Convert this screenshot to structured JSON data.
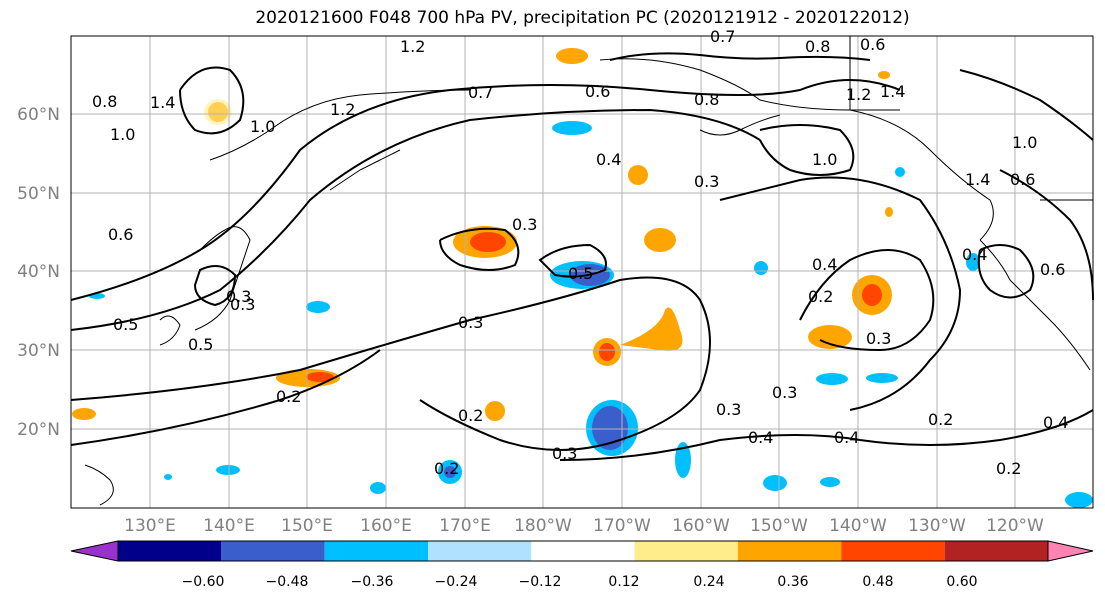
{
  "title": "2020121600 F048 700 hPa PV, precipitation PC (2020121912 - 2020122012)",
  "lat_labels": [
    "60°N",
    "50°N",
    "40°N",
    "30°N",
    "20°N"
  ],
  "lon_labels": [
    "130°E",
    "140°E",
    "150°E",
    "160°E",
    "170°E",
    "180°W",
    "170°W",
    "160°W",
    "150°W",
    "140°W",
    "130°W",
    "120°W"
  ],
  "colorbar": {
    "ticks": [
      "−0.60",
      "−0.48",
      "−0.36",
      "−0.24",
      "−0.12",
      "0.12",
      "0.24",
      "0.36",
      "0.48",
      "0.60"
    ],
    "colors": [
      "#9932cc",
      "#00008b",
      "#3a5fcd",
      "#00bfff",
      "#b0e2ff",
      "#ffffff",
      "#ffec8b",
      "#ffa500",
      "#ff4500",
      "#b22222",
      "#ff83b3"
    ]
  },
  "contour_labels": [
    "1.2",
    "0.7",
    "0.8",
    "0.6",
    "1.2",
    "1.4",
    "0.8",
    "1.4",
    "1.0",
    "0.7",
    "0.6",
    "0.8",
    "1.2",
    "1.0",
    "0.4",
    "0.3",
    "1.0",
    "1.0",
    "1.4",
    "0.6",
    "0.3",
    "0.5",
    "0.4",
    "0.4",
    "0.2",
    "0.3",
    "0.3",
    "0.5",
    "0.3",
    "0.2",
    "0.2",
    "0.3",
    "0.3",
    "0.3",
    "0.4",
    "0.4",
    "0.2",
    "0.4",
    "0.2",
    "0.2",
    "0.3",
    "0.5",
    "0.6",
    "0.6"
  ],
  "map": {
    "features": [
      "PV contours",
      "precipitation shading",
      "coastlines",
      "graticule"
    ]
  }
}
